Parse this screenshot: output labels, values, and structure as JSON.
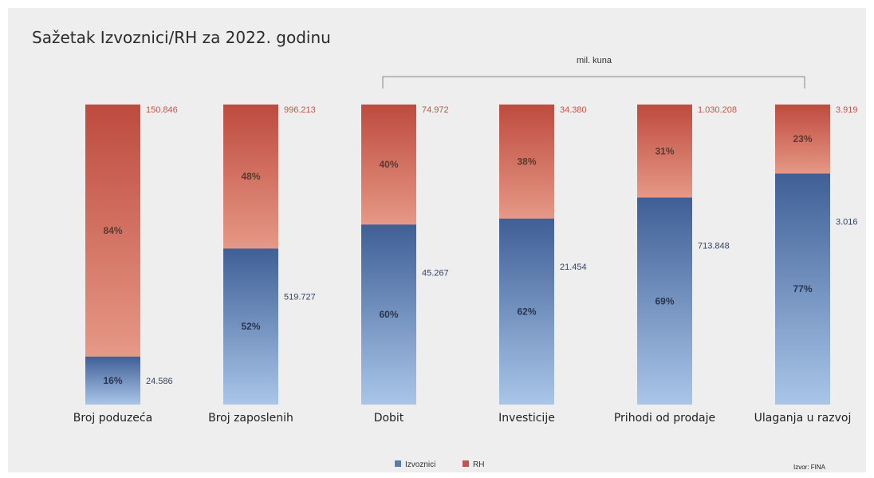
{
  "chart_data": {
    "type": "bar",
    "stacked": true,
    "percent_stacked": true,
    "title": "Sažetak Izvoznici/RH za 2022. godinu",
    "unit_label": "mil. kuna",
    "categories": [
      "Broj poduzeća",
      "Broj zaposlenih",
      "Dobit",
      "Investicije",
      "Prihodi od prodaje",
      "Ulaganja u razvoj"
    ],
    "series": [
      {
        "name": "Izvoznici",
        "percent_values": [
          16,
          52,
          60,
          62,
          69,
          77
        ],
        "percent_labels": [
          "16%",
          "52%",
          "60%",
          "62%",
          "69%",
          "77%"
        ],
        "value_labels": [
          "24.586",
          "519.727",
          "45.267",
          "21.454",
          "713.848",
          "3.016"
        ]
      },
      {
        "name": "RH",
        "percent_values": [
          84,
          48,
          40,
          38,
          31,
          23
        ],
        "percent_labels": [
          "84%",
          "48%",
          "40%",
          "38%",
          "31%",
          "23%"
        ],
        "value_labels": [
          "150.846",
          "996.213",
          "74.972",
          "34.380",
          "1.030.208",
          "3.919"
        ]
      }
    ],
    "ylim": [
      0,
      100
    ],
    "legend_position": "bottom",
    "grid": false,
    "colors": {
      "Izvoznici": "#5a7bb0",
      "RH": "#c0564a"
    },
    "source": "Izvor: FINA"
  }
}
